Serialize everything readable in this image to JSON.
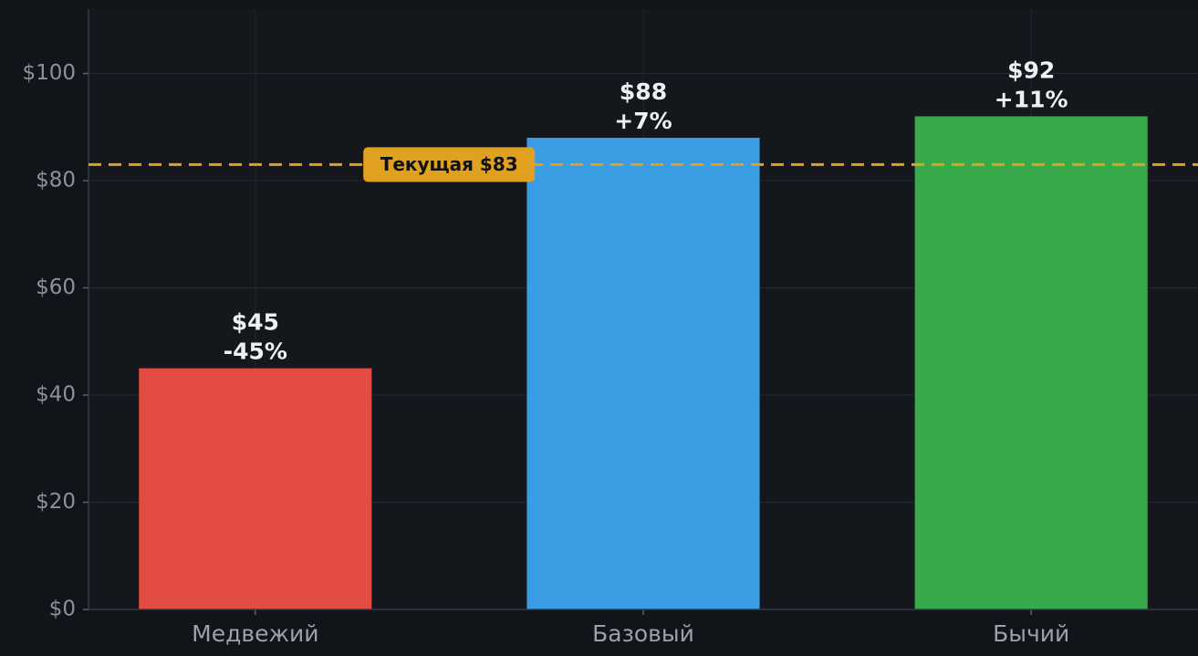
{
  "chart_data": {
    "type": "bar",
    "categories": [
      "Медвежий",
      "Базовый",
      "Бычий"
    ],
    "values": [
      45,
      88,
      92
    ],
    "value_labels": [
      "$45",
      "$88",
      "$92"
    ],
    "change_labels": [
      "-45%",
      "+7%",
      "+11%"
    ],
    "colors": [
      "#e34c42",
      "#3a9ce2",
      "#39aa4c"
    ],
    "ylim": [
      0,
      112
    ],
    "yticks": [
      {
        "value": 0,
        "label": "$0"
      },
      {
        "value": 20,
        "label": "$20"
      },
      {
        "value": 40,
        "label": "$40"
      },
      {
        "value": 60,
        "label": "$60"
      },
      {
        "value": 80,
        "label": "$80"
      },
      {
        "value": 100,
        "label": "$100"
      }
    ],
    "grid": true,
    "reference_line": {
      "value": 83,
      "label": "Текущая $83",
      "color": "#e0a020"
    }
  }
}
